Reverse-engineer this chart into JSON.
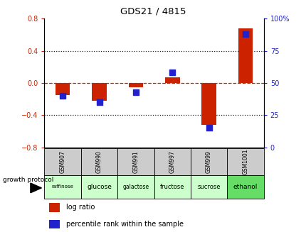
{
  "title": "GDS21 / 4815",
  "samples": [
    "GSM907",
    "GSM990",
    "GSM991",
    "GSM997",
    "GSM999",
    "GSM1001"
  ],
  "growth_protocol": [
    "raffinose",
    "glucose",
    "galactose",
    "fructose",
    "sucrose",
    "ethanol"
  ],
  "log_ratios": [
    -0.15,
    -0.22,
    -0.05,
    0.07,
    -0.52,
    0.68
  ],
  "percentile_ranks": [
    40,
    35,
    43,
    58,
    15,
    88
  ],
  "bar_color": "#cc2200",
  "dot_color": "#2222cc",
  "ylim": [
    -0.8,
    0.8
  ],
  "right_ylim": [
    0,
    100
  ],
  "right_yticks": [
    0,
    25,
    50,
    75,
    100
  ],
  "left_yticks": [
    -0.8,
    -0.4,
    0.0,
    0.4,
    0.8
  ],
  "right_tick_labels": [
    "0",
    "25",
    "50",
    "75",
    "100%"
  ],
  "hline_color": "#cc2200",
  "dotted_color": "#222222",
  "gsm_bg": "#cccccc",
  "protocol_bg_colors": [
    "#ccffcc",
    "#ccffcc",
    "#ccffcc",
    "#ccffcc",
    "#ccffcc",
    "#66dd66"
  ],
  "legend_log_ratio": "log ratio",
  "legend_percentile": "percentile rank within the sample",
  "growth_label": "growth protocol"
}
